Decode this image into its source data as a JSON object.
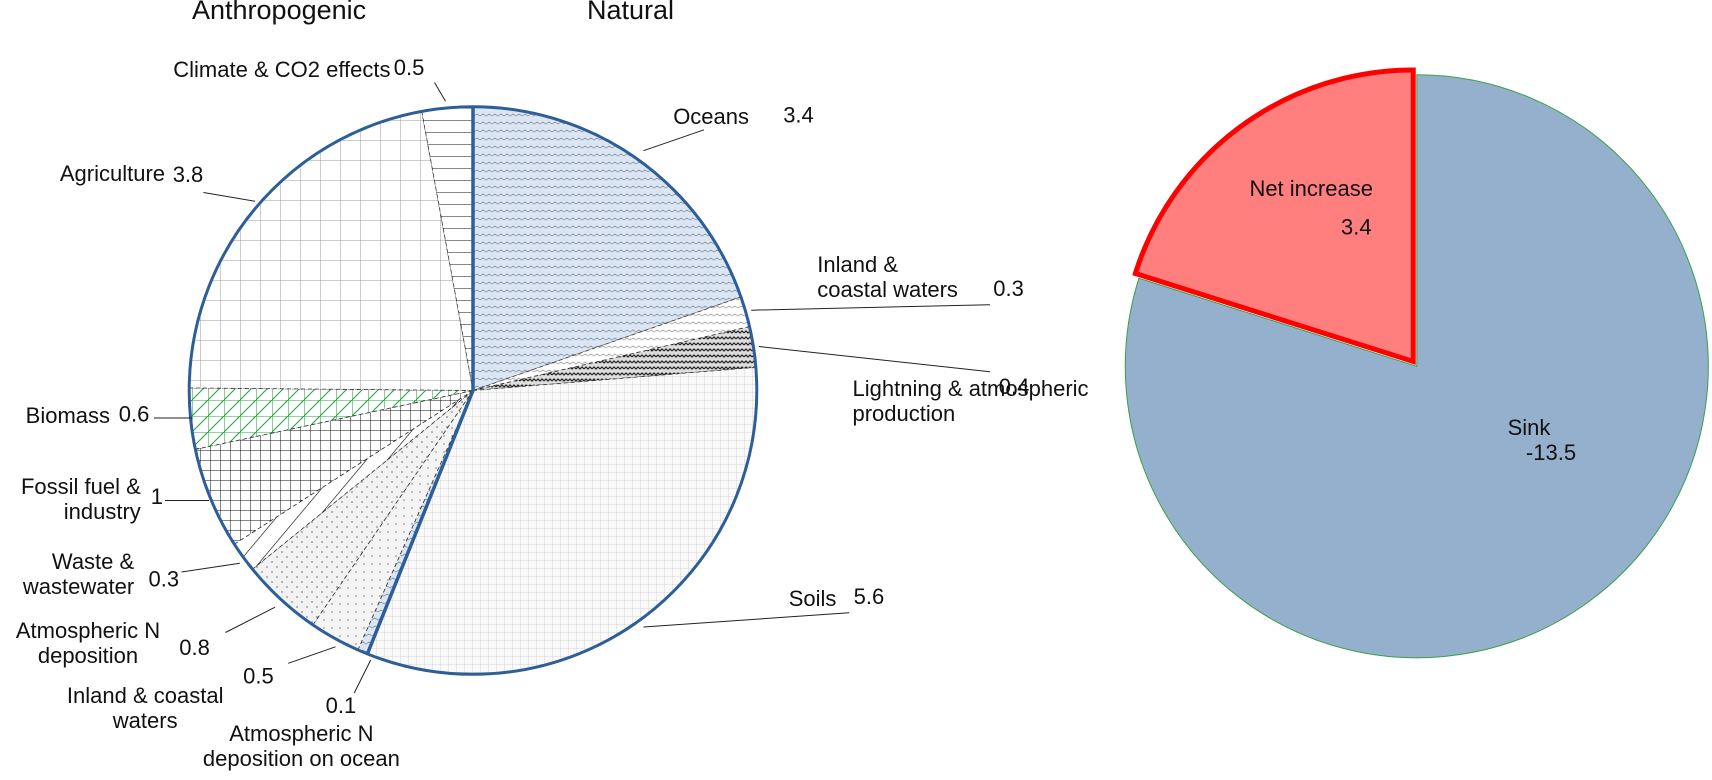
{
  "chart_data": [
    {
      "type": "pie",
      "annotations": [
        "Anthropogenic",
        "Natural"
      ],
      "categories": [
        "Oceans",
        "Inland & coastal waters",
        "Lightning & atmospheric production",
        "Soils",
        "Atmospheric N deposition on ocean",
        "Inland & coastal waters",
        "Atmospheric N deposition",
        "Waste & wastewater",
        "Fossil fuel & industry",
        "Biomass",
        "Agriculture",
        "Climate & CO2 effects"
      ],
      "values": [
        3.4,
        0.3,
        0.4,
        5.6,
        0.1,
        0.5,
        0.8,
        0.3,
        1,
        0.6,
        3.8,
        0.5
      ]
    },
    {
      "type": "pie",
      "categories": [
        "Net increase",
        "Sink"
      ],
      "values": [
        3.4,
        -13.5
      ],
      "colors": [
        "#ff7f7f",
        "#95b0cc"
      ]
    }
  ]
}
